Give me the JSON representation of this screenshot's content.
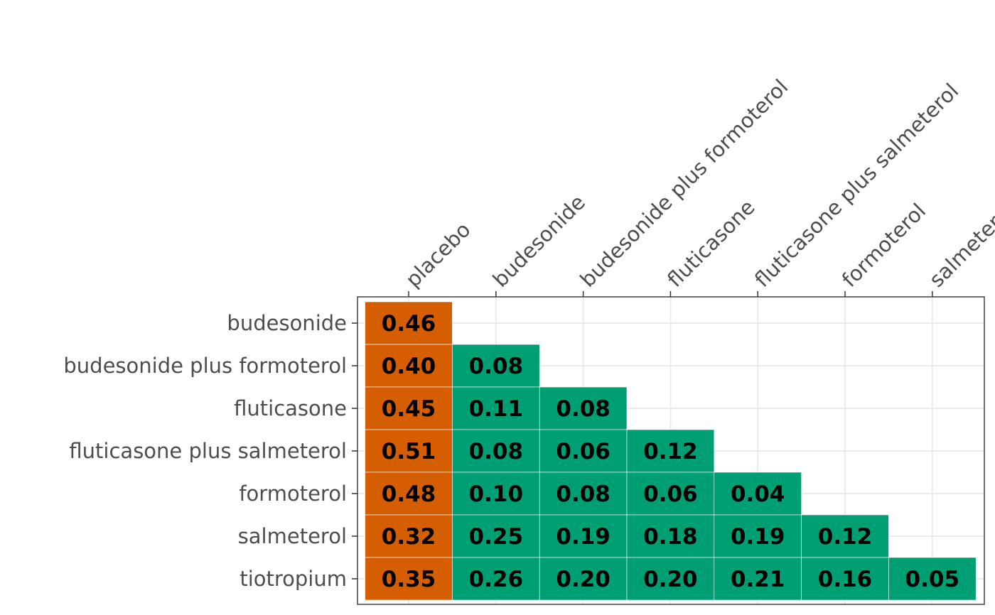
{
  "chart_data": {
    "type": "heatmap",
    "title": "",
    "xlabel": "",
    "ylabel": "",
    "x_categories": [
      "placebo",
      "budesonide",
      "budesonide plus formoterol",
      "fluticasone",
      "fluticasone plus salmeterol",
      "formoterol",
      "salmeterol"
    ],
    "y_categories": [
      "budesonide",
      "budesonide plus formoterol",
      "fluticasone",
      "fluticasone plus salmeterol",
      "formoterol",
      "salmeterol",
      "tiotropium"
    ],
    "values": [
      [
        "0.46",
        null,
        null,
        null,
        null,
        null,
        null
      ],
      [
        "0.40",
        "0.08",
        null,
        null,
        null,
        null,
        null
      ],
      [
        "0.45",
        "0.11",
        "0.08",
        null,
        null,
        null,
        null
      ],
      [
        "0.51",
        "0.08",
        "0.06",
        "0.12",
        null,
        null,
        null
      ],
      [
        "0.48",
        "0.10",
        "0.08",
        "0.06",
        "0.04",
        null,
        null
      ],
      [
        "0.32",
        "0.25",
        "0.19",
        "0.18",
        "0.19",
        "0.12",
        null
      ],
      [
        "0.35",
        "0.26",
        "0.20",
        "0.20",
        "0.21",
        "0.16",
        "0.05"
      ]
    ],
    "colors": {
      "placebo_column": "#d55e00",
      "other_columns": "#009e73",
      "grid": "#ebebeb",
      "border": "#333333",
      "cell_border": "#ffffff"
    },
    "grid": true,
    "legend": "none"
  }
}
